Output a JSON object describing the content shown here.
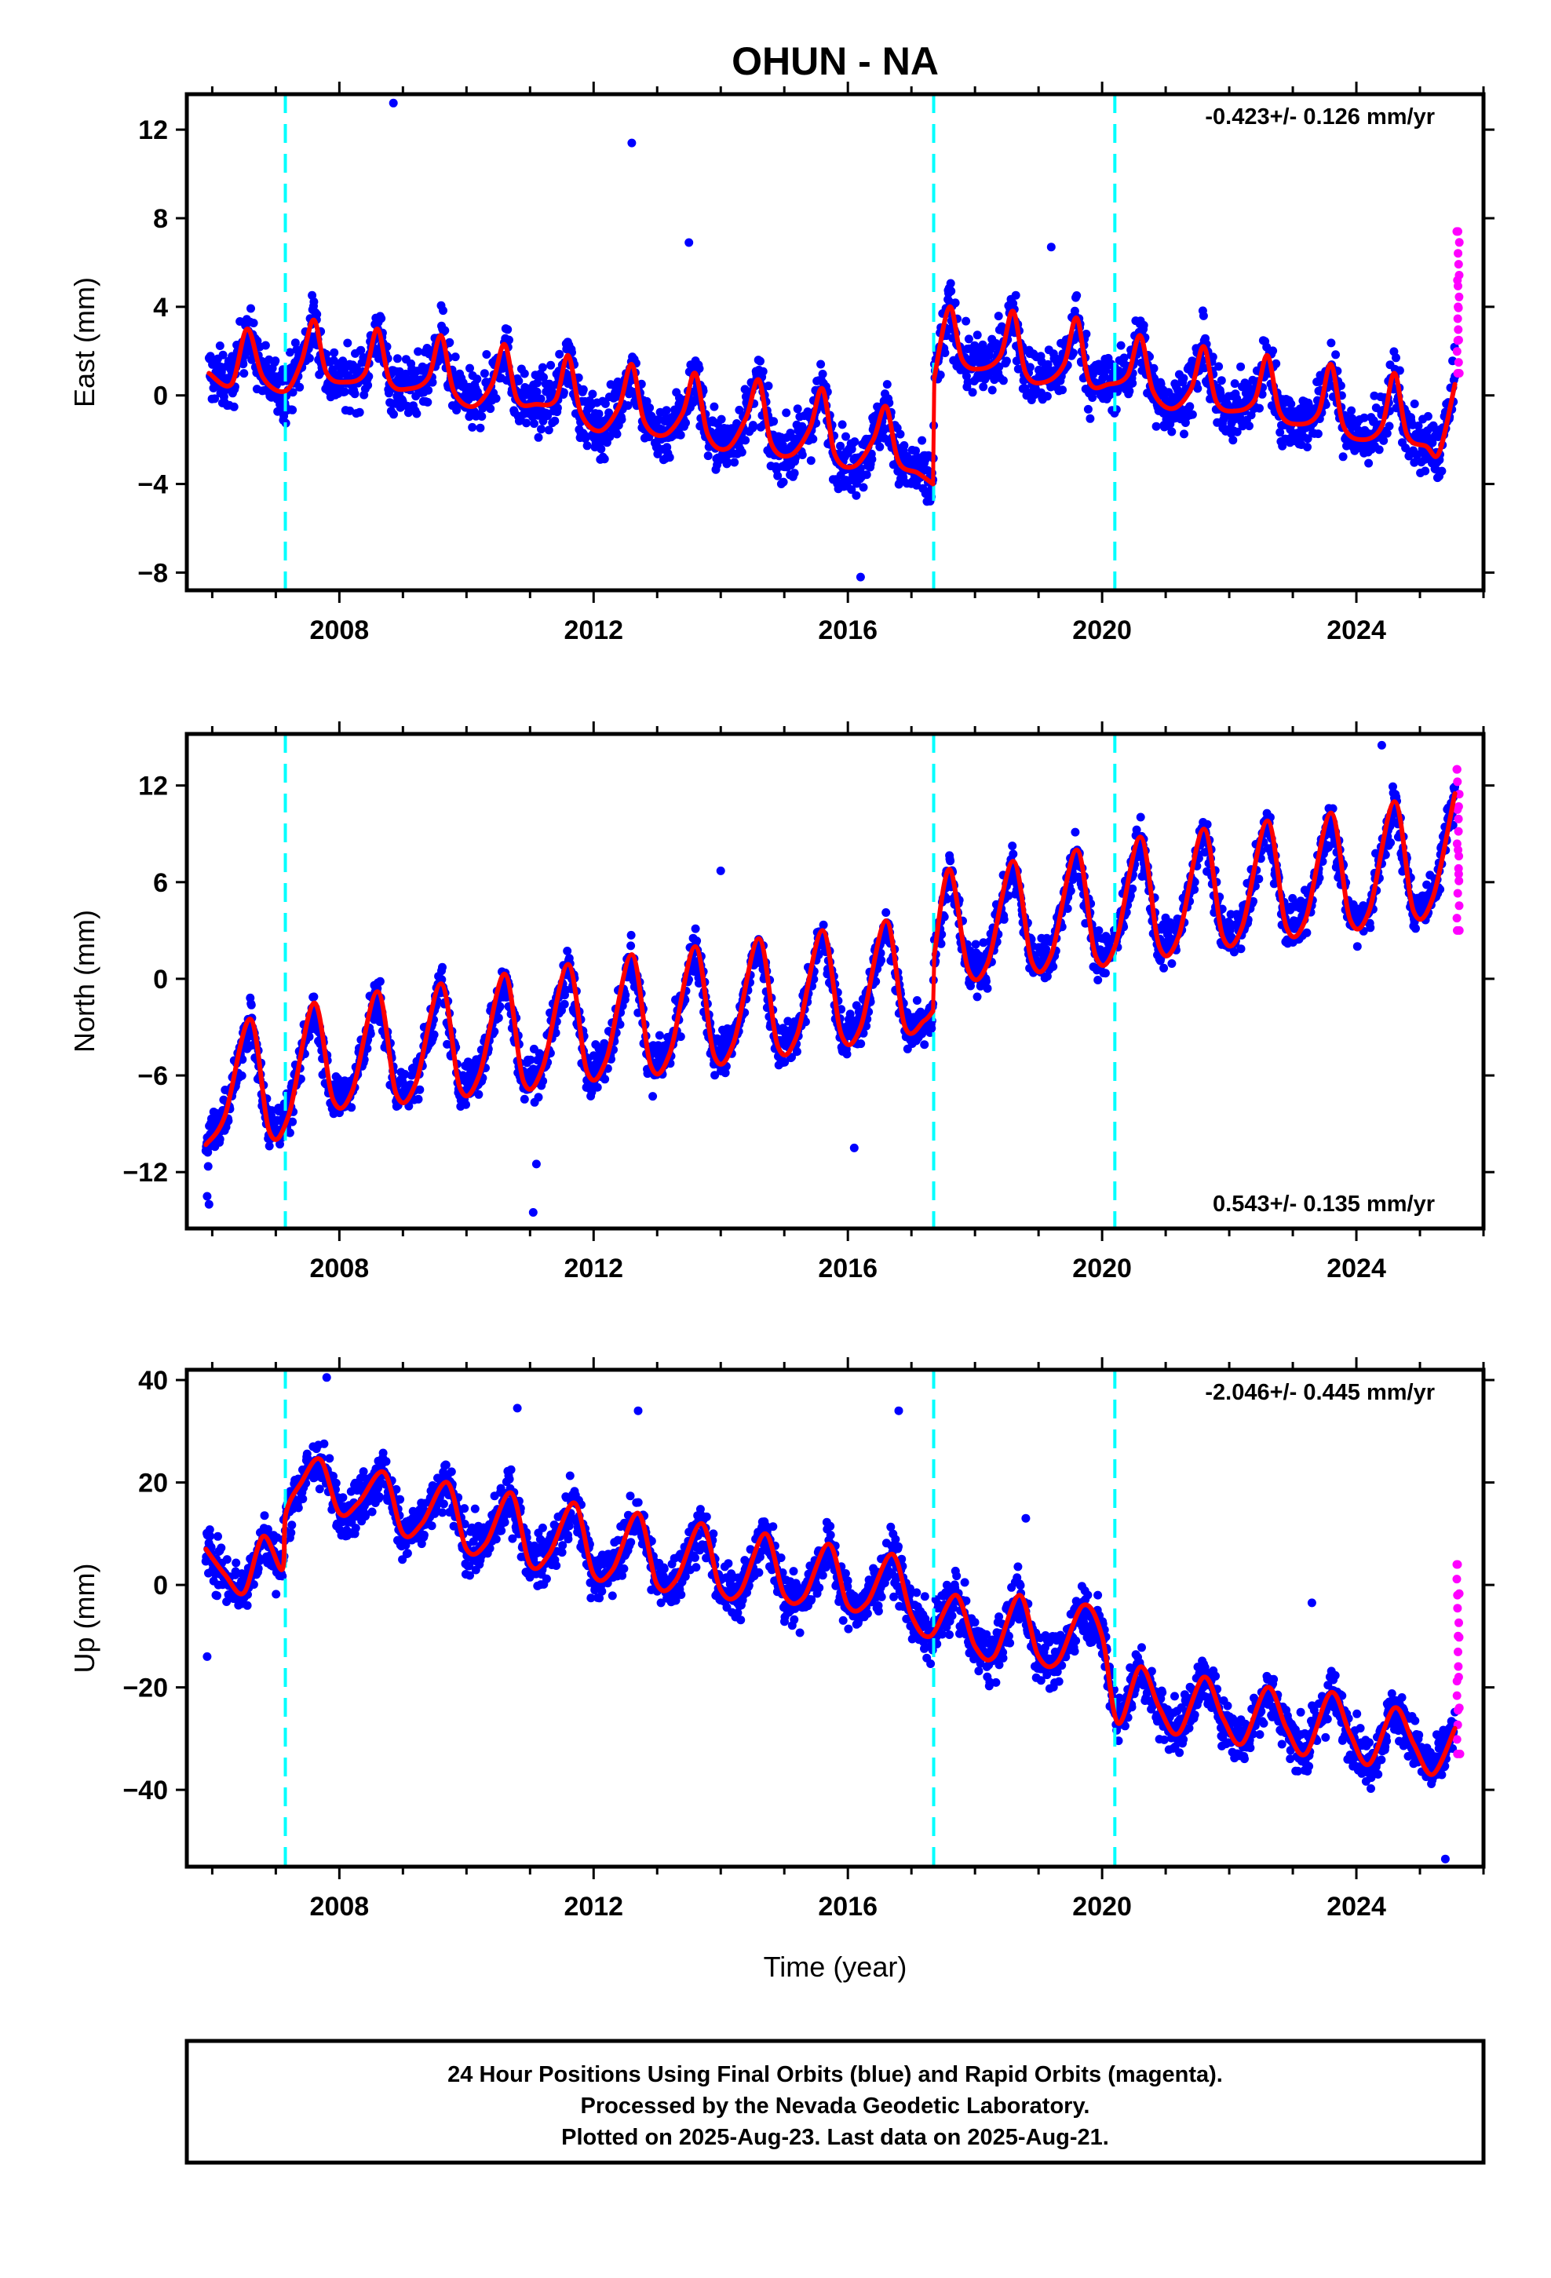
{
  "title": "OHUN - NA",
  "xlabel": "Time (year)",
  "caption": {
    "line1": "24 Hour Positions Using Final Orbits (blue) and Rapid Orbits (magenta).",
    "line2": "Processed by the Nevada Geodetic Laboratory.",
    "line3": "Plotted on 2025-Aug-23. Last data on 2025-Aug-21."
  },
  "colors": {
    "final_orbits": "#0000ff",
    "rapid_orbits": "#ff00ff",
    "model_fit": "#ff0000",
    "equipment_change": "#00ffff"
  },
  "chart_data": [
    {
      "type": "scatter",
      "ylabel": "East (mm)",
      "rate": "-0.423+/- 0.126 mm/yr",
      "rate_position": "top-right",
      "xlim": [
        2005.6,
        2026.0
      ],
      "ylim": [
        -8.8,
        13.6
      ],
      "yticks": [
        -8,
        -4,
        0,
        4,
        8,
        12
      ],
      "xticks": [
        2008,
        2012,
        2016,
        2020,
        2024
      ],
      "breaks": [
        2007.15,
        2017.35,
        2020.2
      ],
      "series": [
        {
          "x": [
            2005.95,
            2006.3,
            2006.55,
            2006.8,
            2007.15,
            2007.4,
            2007.6,
            2007.8,
            2008.1,
            2008.4,
            2008.6,
            2008.8,
            2009.1,
            2009.4,
            2009.6,
            2009.8,
            2010.1,
            2010.4,
            2010.6,
            2010.8,
            2011.1,
            2011.4,
            2011.6,
            2011.8,
            2012.1,
            2012.4,
            2012.6,
            2012.8,
            2013.1,
            2013.4,
            2013.6,
            2013.8,
            2014.1,
            2014.4,
            2014.6,
            2014.8,
            2015.1,
            2015.4,
            2015.6,
            2015.8,
            2016.1,
            2016.4,
            2016.6,
            2016.8,
            2017.1,
            2017.34,
            2017.36,
            2017.6,
            2017.8,
            2018.1,
            2018.4,
            2018.6,
            2018.8,
            2019.1,
            2019.4,
            2019.6,
            2019.8,
            2020.1,
            2020.4,
            2020.6,
            2020.8,
            2021.1,
            2021.4,
            2021.6,
            2021.8,
            2022.1,
            2022.4,
            2022.6,
            2022.8,
            2023.1,
            2023.4,
            2023.6,
            2023.8,
            2024.1,
            2024.4,
            2024.6,
            2024.8,
            2025.1,
            2025.3,
            2025.55
          ],
          "y": [
            1.0,
            0.5,
            3.0,
            0.8,
            0.2,
            1.5,
            3.4,
            1.0,
            0.6,
            1.0,
            3.0,
            0.6,
            0.3,
            0.8,
            2.7,
            0.2,
            -0.5,
            0.5,
            2.3,
            -0.2,
            -0.4,
            -0.2,
            1.8,
            -0.8,
            -1.6,
            -0.5,
            1.4,
            -1.2,
            -1.8,
            -0.8,
            1.0,
            -1.8,
            -2.4,
            -1.0,
            0.7,
            -2.2,
            -2.7,
            -1.5,
            0.3,
            -2.7,
            -3.2,
            -2.0,
            -0.5,
            -3.0,
            -3.5,
            -4.0,
            0.8,
            4.0,
            1.6,
            1.2,
            1.8,
            3.8,
            1.0,
            0.6,
            1.4,
            3.5,
            0.6,
            0.5,
            0.9,
            2.7,
            0.2,
            -0.6,
            0.3,
            2.2,
            -0.3,
            -0.7,
            -0.2,
            1.8,
            -0.8,
            -1.3,
            -0.8,
            1.4,
            -1.4,
            -2.0,
            -1.4,
            1.0,
            -1.8,
            -2.3,
            -2.6,
            0.5
          ]
        }
      ],
      "final_orbits": {
        "start": 2005.95,
        "end": 2025.55,
        "spread": 1.7
      },
      "rapid_orbits": {
        "x": [
          2025.58,
          2025.59,
          2025.6,
          2025.61,
          2025.62
        ],
        "y": [
          7.4,
          5.2,
          4.0,
          2.5,
          1.0
        ]
      },
      "outliers": {
        "x": [
          2008.85,
          2012.6,
          2013.5,
          2019.2,
          2016.2
        ],
        "y": [
          13.2,
          11.4,
          6.9,
          6.7,
          -8.2
        ]
      }
    },
    {
      "type": "scatter",
      "ylabel": "North (mm)",
      "rate": "0.543+/- 0.135 mm/yr",
      "rate_position": "bottom-right",
      "xlim": [
        2005.6,
        2026.0
      ],
      "ylim": [
        -15.5,
        15.2
      ],
      "yticks": [
        -12,
        -6,
        0,
        6,
        12
      ],
      "xticks": [
        2008,
        2012,
        2016,
        2020,
        2024
      ],
      "breaks": [
        2007.15,
        2017.35,
        2020.2
      ],
      "series": [
        {
          "x": [
            2005.9,
            2006.2,
            2006.6,
            2006.9,
            2007.2,
            2007.6,
            2007.9,
            2008.2,
            2008.6,
            2008.9,
            2009.2,
            2009.6,
            2009.9,
            2010.2,
            2010.6,
            2010.9,
            2011.2,
            2011.6,
            2011.9,
            2012.2,
            2012.6,
            2012.9,
            2013.2,
            2013.6,
            2013.9,
            2014.2,
            2014.6,
            2014.9,
            2015.2,
            2015.6,
            2015.9,
            2016.2,
            2016.6,
            2016.9,
            2017.2,
            2017.34,
            2017.36,
            2017.6,
            2017.9,
            2018.2,
            2018.6,
            2018.9,
            2019.2,
            2019.6,
            2019.9,
            2020.2,
            2020.6,
            2020.9,
            2021.2,
            2021.6,
            2021.9,
            2022.2,
            2022.6,
            2022.9,
            2023.2,
            2023.6,
            2023.9,
            2024.2,
            2024.6,
            2024.9,
            2025.2,
            2025.55
          ],
          "y": [
            -10.3,
            -8.5,
            -2.5,
            -9.5,
            -8.5,
            -1.5,
            -7.5,
            -7.0,
            -0.8,
            -7.2,
            -6.5,
            -0.3,
            -6.8,
            -6.0,
            0.3,
            -6.4,
            -5.5,
            0.9,
            -5.8,
            -5.0,
            1.5,
            -5.4,
            -4.6,
            2.0,
            -4.8,
            -4.0,
            2.5,
            -4.2,
            -3.5,
            3.0,
            -3.5,
            -3.0,
            3.6,
            -3.0,
            -2.6,
            -2.0,
            1.5,
            6.8,
            0.5,
            1.0,
            7.3,
            1.0,
            1.5,
            8.0,
            1.4,
            2.0,
            8.8,
            2.0,
            2.6,
            9.3,
            2.6,
            3.2,
            9.8,
            3.2,
            3.7,
            10.3,
            3.7,
            4.2,
            11.0,
            4.2,
            5.0,
            11.5
          ]
        }
      ],
      "final_orbits": {
        "start": 2005.9,
        "end": 2025.55,
        "spread": 1.8
      },
      "rapid_orbits": {
        "x": [
          2025.58,
          2025.59,
          2025.6,
          2025.61,
          2025.62
        ],
        "y": [
          13.0,
          10.5,
          8.0,
          6.5,
          3.0
        ]
      },
      "outliers": {
        "x": [
          2005.92,
          2005.95,
          2011.05,
          2011.1,
          2014.0,
          2016.1,
          2024.4
        ],
        "y": [
          -13.5,
          -14.0,
          -14.5,
          -11.5,
          6.7,
          -10.5,
          14.5
        ]
      }
    },
    {
      "type": "scatter",
      "ylabel": "Up (mm)",
      "rate": "-2.046+/- 0.445 mm/yr",
      "rate_position": "top-right",
      "xlim": [
        2005.6,
        2026.0
      ],
      "ylim": [
        -55.0,
        42.0
      ],
      "yticks": [
        -40,
        -20,
        0,
        20,
        40
      ],
      "xticks": [
        2008,
        2012,
        2016,
        2020,
        2024
      ],
      "breaks": [
        2007.15,
        2017.35,
        2020.2
      ],
      "series": [
        {
          "x": [
            2005.9,
            2006.2,
            2006.5,
            2006.8,
            2007.1,
            2007.16,
            2007.4,
            2007.7,
            2008.0,
            2008.3,
            2008.7,
            2009.0,
            2009.3,
            2009.7,
            2010.0,
            2010.3,
            2010.7,
            2011.0,
            2011.3,
            2011.7,
            2012.0,
            2012.3,
            2012.7,
            2013.0,
            2013.3,
            2013.7,
            2014.0,
            2014.3,
            2014.7,
            2015.0,
            2015.3,
            2015.7,
            2016.0,
            2016.3,
            2016.7,
            2017.0,
            2017.3,
            2017.7,
            2018.0,
            2018.3,
            2018.7,
            2019.0,
            2019.3,
            2019.7,
            2020.0,
            2020.25,
            2020.6,
            2020.9,
            2021.2,
            2021.6,
            2021.9,
            2022.2,
            2022.6,
            2022.9,
            2023.2,
            2023.6,
            2023.9,
            2024.2,
            2024.6,
            2024.9,
            2025.2,
            2025.55
          ],
          "y": [
            7.0,
            2.0,
            -1.5,
            9.5,
            3.0,
            14.0,
            20.0,
            24.5,
            14.0,
            16.0,
            22.0,
            10.0,
            12.0,
            20.0,
            7.0,
            8.0,
            18.0,
            4.0,
            6.0,
            16.0,
            2.0,
            3.0,
            14.0,
            0.0,
            1.0,
            12.0,
            -1.0,
            -1.5,
            10.0,
            -2.0,
            -2.5,
            8.0,
            -4.0,
            -3.5,
            6.0,
            -6.0,
            -10.0,
            -2.0,
            -12.0,
            -14.0,
            -2.0,
            -14.0,
            -15.0,
            -4.0,
            -10.0,
            -27.0,
            -16.0,
            -24.0,
            -29.0,
            -18.0,
            -26.0,
            -31.0,
            -20.0,
            -28.0,
            -33.0,
            -21.0,
            -29.0,
            -35.0,
            -24.0,
            -31.0,
            -37.0,
            -28.0
          ]
        }
      ],
      "final_orbits": {
        "start": 2005.9,
        "end": 2025.55,
        "spread": 6.5
      },
      "rapid_orbits": {
        "x": [
          2025.58,
          2025.59,
          2025.6,
          2025.61,
          2025.62,
          2025.63
        ],
        "y": [
          4.0,
          -2.0,
          -10.0,
          -18.0,
          -24.0,
          -33.0
        ]
      },
      "outliers": {
        "x": [
          2005.92,
          2007.8,
          2010.8,
          2012.7,
          2016.8,
          2018.8,
          2023.3,
          2025.4
        ],
        "y": [
          -14.0,
          40.5,
          34.5,
          34.0,
          34.0,
          13.0,
          -3.5,
          -53.5
        ]
      }
    }
  ]
}
